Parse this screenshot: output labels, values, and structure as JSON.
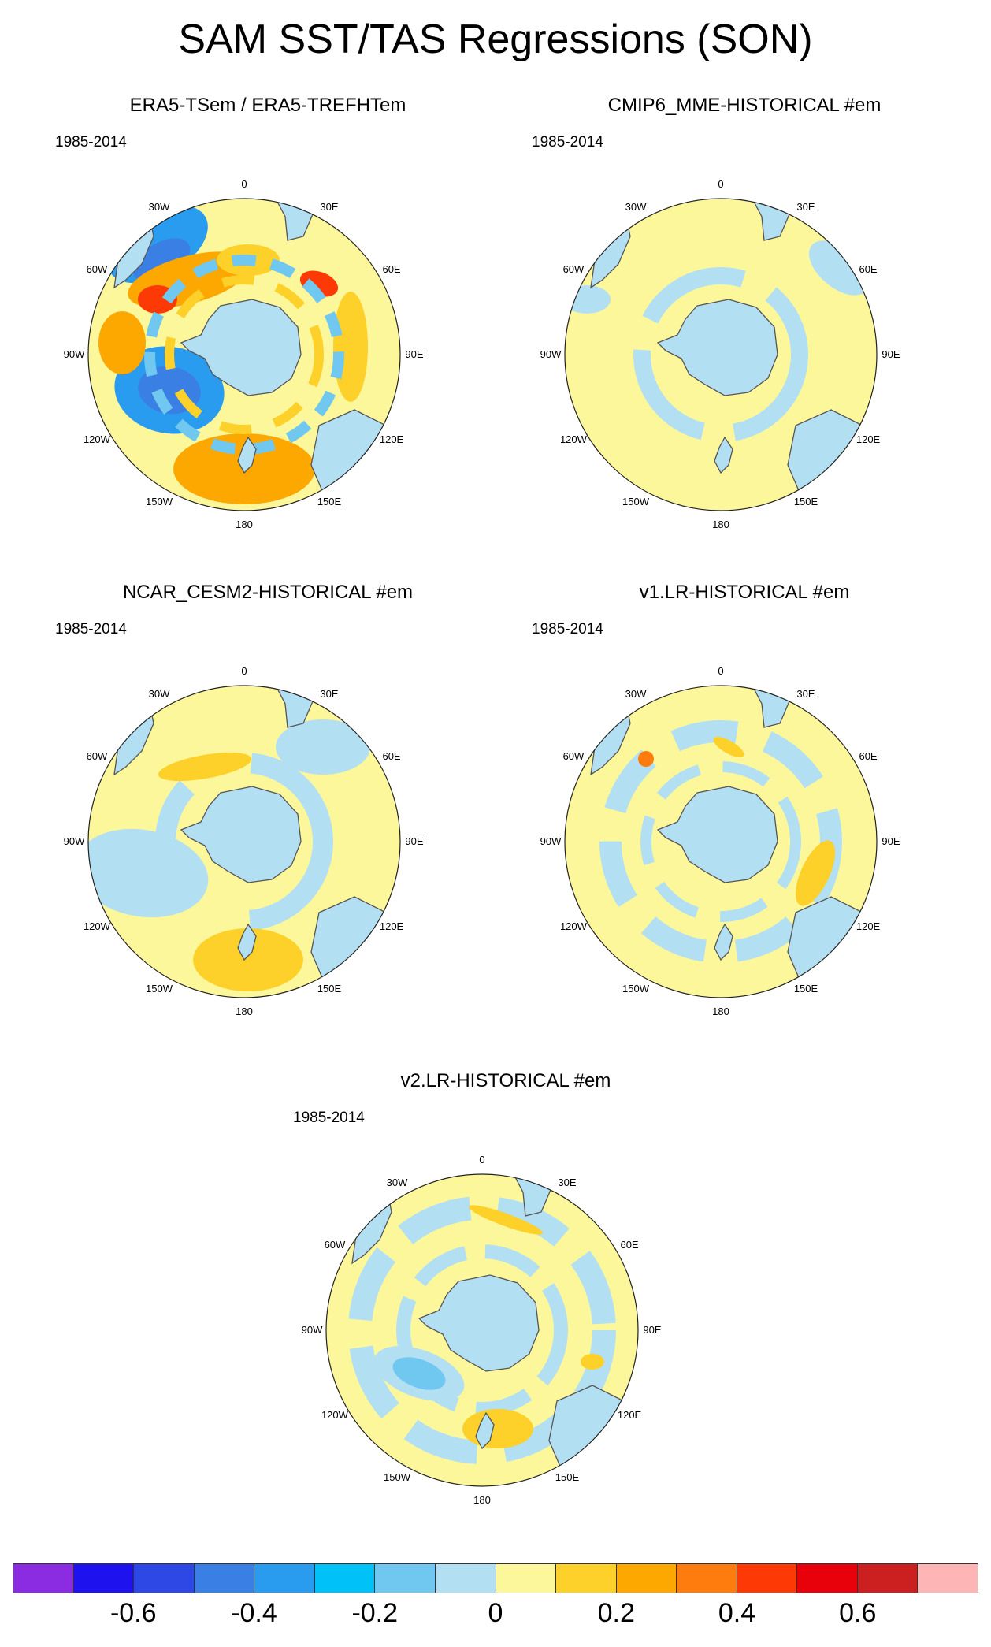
{
  "title": "SAM SST/TAS Regressions (SON)",
  "period": "1985-2014",
  "lon_labels": [
    "0",
    "30E",
    "60E",
    "90E",
    "120E",
    "150E",
    "180",
    "150W",
    "120W",
    "90W",
    "60W",
    "30W"
  ],
  "panels": [
    {
      "title": "ERA5-TSem / ERA5-TREFHTem",
      "pattern": "obs"
    },
    {
      "title": "CMIP6_MME-HISTORICAL  #em",
      "pattern": "mme"
    },
    {
      "title": "NCAR_CESM2-HISTORICAL  #em",
      "pattern": "cesm"
    },
    {
      "title": "v1.LR-HISTORICAL  #em",
      "pattern": "v1"
    },
    {
      "title": "v2.LR-HISTORICAL  #em",
      "pattern": "v2"
    }
  ],
  "colorbar": {
    "colors": [
      "#8b2be2",
      "#1e12ee",
      "#2e48e6",
      "#3a7fe4",
      "#2a9cf0",
      "#00c2f8",
      "#70c8f0",
      "#b3dff2",
      "#fdf79c",
      "#fdd12a",
      "#fca800",
      "#fd7c0d",
      "#fd3a05",
      "#e8000b",
      "#cc2020",
      "#fdb5b5"
    ],
    "labels": [
      "-0.6",
      "-0.4",
      "-0.2",
      "0",
      "0.2",
      "0.4",
      "0.6"
    ]
  },
  "legend": {
    "land": "#b3dff2",
    "ocean_base": "#fdf79c"
  }
}
